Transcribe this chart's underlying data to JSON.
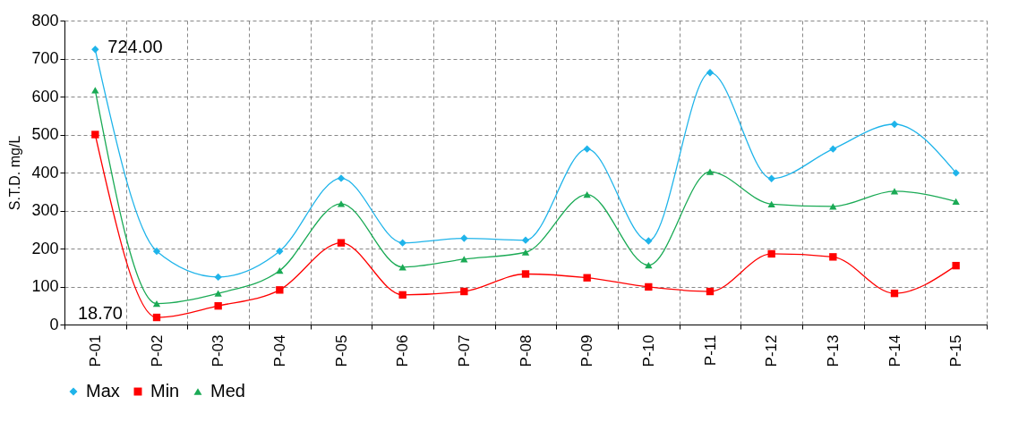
{
  "chart_data": {
    "type": "line",
    "ylabel": "S.T.D. mg/L",
    "categories": [
      "P-01",
      "P-02",
      "P-03",
      "P-04",
      "P-05",
      "P-06",
      "P-07",
      "P-08",
      "P-09",
      "P-10",
      "P-11",
      "P-12",
      "P-13",
      "P-14",
      "P-15"
    ],
    "series": [
      {
        "name": "Max",
        "color": "#1fb4ea",
        "marker": "diamond",
        "values": [
          724,
          193,
          125,
          193,
          385,
          215,
          227,
          222,
          462,
          220,
          663,
          384,
          462,
          527,
          399
        ]
      },
      {
        "name": "Min",
        "color": "#ff0000",
        "marker": "square",
        "values": [
          500,
          18.7,
          49,
          91,
          215,
          78,
          87,
          133,
          123,
          99,
          87,
          186,
          178,
          82,
          155
        ]
      },
      {
        "name": "Med",
        "color": "#1aaa55",
        "marker": "triangle",
        "values": [
          617,
          55,
          82,
          142,
          318,
          151,
          172,
          190,
          342,
          156,
          402,
          317,
          311,
          351,
          324
        ]
      }
    ],
    "ylim": [
      0,
      800
    ],
    "yticks": [
      0,
      100,
      200,
      300,
      400,
      500,
      600,
      700,
      800
    ],
    "grid": true,
    "legend": "bottom",
    "annotations": [
      {
        "text": "724.00",
        "x": "P-01",
        "y": 724
      },
      {
        "text": "18.70",
        "x": "P-02",
        "y": 18.7
      }
    ]
  }
}
